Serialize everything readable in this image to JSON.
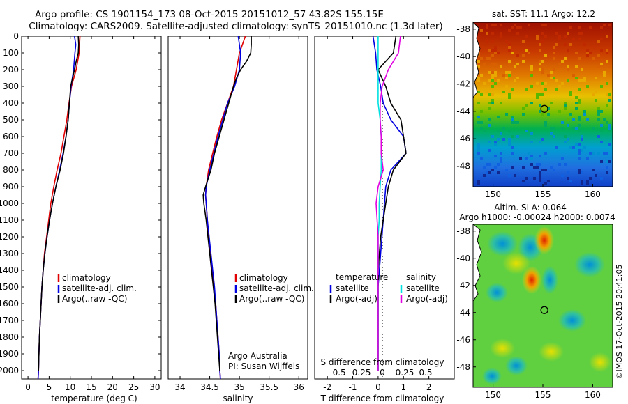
{
  "header": {
    "line1": "Argo profile: CS 1901154_173 08-Oct-2015 20151012_57 43.82S 155.15E",
    "line2": "Climatology: CARS2009. Satellite-adjusted climatology: synTS_20151010.nc (1.3d later)"
  },
  "colors": {
    "climatology": "#e00000",
    "satellite": "#0000e0",
    "argo": "#000000",
    "sal_sat": "#00e0e0",
    "sal_argo": "#e000e0"
  },
  "depth_ticks": [
    "0",
    "100",
    "200",
    "300",
    "400",
    "500",
    "600",
    "700",
    "800",
    "900",
    "1000",
    "1100",
    "1200",
    "1300",
    "1400",
    "1500",
    "1600",
    "1700",
    "1800",
    "1900",
    "2000"
  ],
  "chart_data": [
    {
      "type": "line",
      "xlabel": "temperature (deg C)",
      "ylim": [
        2050,
        0
      ],
      "xlim": [
        -1.5,
        31.5
      ],
      "xticks": [
        "0",
        "5",
        "10",
        "15",
        "20",
        "25",
        "30"
      ],
      "legend": [
        "climatology",
        "satellite-adj. clim.",
        "Argo(..raw -QC)"
      ],
      "series": [
        {
          "name": "climatology",
          "depth": [
            0,
            100,
            200,
            300,
            400,
            500,
            600,
            700,
            800,
            900,
            1000,
            1100,
            1200,
            1300,
            1400,
            1500,
            1600,
            1700,
            1800,
            1900,
            2000,
            2050
          ],
          "values": [
            12.3,
            12.1,
            11.4,
            10.3,
            9.7,
            9.2,
            8.5,
            7.8,
            6.9,
            6.1,
            5.4,
            4.9,
            4.4,
            3.9,
            3.6,
            3.3,
            3.1,
            2.9,
            2.7,
            2.6,
            2.5,
            2.4
          ]
        },
        {
          "name": "satellite-adj. clim.",
          "depth": [
            0,
            50,
            100,
            200,
            300,
            400,
            500,
            600,
            700,
            800,
            900,
            1000,
            1100,
            1200,
            1300,
            1400,
            1500,
            1600,
            1700,
            1800,
            1900,
            2000,
            2050
          ],
          "values": [
            11.0,
            11.3,
            11.1,
            10.8,
            10.2,
            9.8,
            9.5,
            9.0,
            8.3,
            7.5,
            6.6,
            5.8,
            5.1,
            4.5,
            4.0,
            3.6,
            3.3,
            3.1,
            2.9,
            2.7,
            2.6,
            2.5,
            2.4
          ]
        },
        {
          "name": "Argo(..raw -QC)",
          "depth": [
            0,
            50,
            100,
            150,
            200,
            300,
            400,
            500,
            600,
            700,
            800,
            900,
            1000,
            1100,
            1200,
            1300,
            1400,
            1500,
            1600,
            1700,
            1800,
            1900,
            2000
          ],
          "values": [
            11.9,
            12.0,
            11.9,
            11.4,
            11.0,
            10.1,
            9.8,
            9.5,
            9.0,
            8.4,
            7.6,
            6.6,
            5.8,
            5.1,
            4.5,
            4.0,
            3.6,
            3.3,
            3.1,
            2.9,
            2.7,
            2.6,
            2.5
          ]
        }
      ]
    },
    {
      "type": "line",
      "xlabel": "salinity",
      "ylim": [
        2050,
        0
      ],
      "xlim": [
        33.8,
        36.15
      ],
      "xticks": [
        "34",
        "34.5",
        "35",
        "35.5",
        "36"
      ],
      "legend": [
        "climatology",
        "satellite-adj. clim.",
        "Argo(..raw -QC)"
      ],
      "annotations": [
        "Argo Australia",
        "PI: Susan Wijffels"
      ],
      "series": [
        {
          "name": "climatology",
          "depth": [
            0,
            50,
            100,
            200,
            300,
            400,
            500,
            600,
            700,
            800,
            900,
            950,
            1000,
            1100,
            1200,
            1300,
            1400,
            1500,
            1600,
            1700,
            1800,
            1900,
            2000,
            2050
          ],
          "values": [
            35.1,
            35.05,
            35.0,
            34.95,
            34.9,
            34.8,
            34.7,
            34.62,
            34.55,
            34.48,
            34.44,
            34.43,
            34.44,
            34.46,
            34.48,
            34.51,
            34.54,
            34.57,
            34.6,
            34.62,
            34.64,
            34.66,
            34.67,
            34.68
          ]
        },
        {
          "name": "satellite-adj. clim.",
          "depth": [
            0,
            50,
            100,
            200,
            300,
            400,
            500,
            600,
            700,
            800,
            900,
            950,
            1000,
            1100,
            1200,
            1300,
            1400,
            1500,
            1600,
            1700,
            1800,
            1900,
            2000,
            2050
          ],
          "values": [
            34.98,
            35.0,
            35.02,
            35.0,
            34.92,
            34.8,
            34.72,
            34.64,
            34.57,
            34.5,
            34.44,
            34.43,
            34.44,
            34.46,
            34.49,
            34.52,
            34.55,
            34.58,
            34.6,
            34.62,
            34.64,
            34.66,
            34.67,
            34.68
          ]
        },
        {
          "name": "Argo(..raw -QC)",
          "depth": [
            0,
            50,
            100,
            150,
            200,
            250,
            300,
            400,
            500,
            600,
            700,
            800,
            900,
            950,
            1000,
            1100,
            1200,
            1300,
            1400,
            1500,
            1600,
            1700,
            1800,
            1900,
            2000
          ],
          "values": [
            35.2,
            35.2,
            35.19,
            35.12,
            35.02,
            34.95,
            34.9,
            34.82,
            34.74,
            34.66,
            34.58,
            34.52,
            34.43,
            34.39,
            34.4,
            34.44,
            34.47,
            34.5,
            34.53,
            34.56,
            34.59,
            34.61,
            34.63,
            34.65,
            34.67
          ]
        }
      ]
    },
    {
      "type": "line",
      "xlabel": "T difference from climatology",
      "title2": "S difference from climatology",
      "ylim": [
        2050,
        0
      ],
      "xlim": [
        -2.5,
        3.0
      ],
      "xticks": [
        "-2",
        "-1",
        "0",
        "1",
        "2"
      ],
      "xticks_top": [
        "-0.5",
        "-0.25",
        "0",
        "0.25",
        "0.5"
      ],
      "legend": {
        "temperature": [
          "satellite",
          "Argo(-adj)"
        ],
        "salinity": [
          "satellite",
          "Argo(-adj)"
        ],
        "temperature_title": "temperature",
        "salinity_title": "salinity"
      },
      "series": [
        {
          "name": "temperature satellite",
          "depth": [
            0,
            100,
            200,
            300,
            400,
            500,
            600,
            700,
            800,
            900,
            1000,
            1100,
            1200,
            1300,
            1400,
            1500,
            1600,
            1700,
            1800,
            1900,
            2000
          ],
          "values": [
            -0.2,
            -0.1,
            -0.05,
            0.1,
            0.2,
            0.5,
            1.0,
            1.1,
            0.5,
            0.3,
            0.25,
            0.2,
            0.15,
            0.1,
            0.05,
            0.0,
            0.0,
            0.0,
            0.0,
            0.0,
            0.0
          ]
        },
        {
          "name": "temperature Argo(-adj)",
          "depth": [
            0,
            100,
            200,
            300,
            400,
            500,
            600,
            700,
            800,
            900,
            1000,
            1100,
            1200,
            1300,
            1400,
            1500,
            1600,
            1700,
            1800,
            1900,
            2000
          ],
          "values": [
            0.7,
            0.6,
            0.0,
            0.3,
            0.5,
            0.9,
            1.0,
            1.1,
            0.6,
            0.4,
            0.3,
            0.2,
            0.1,
            0.05,
            0.0,
            0.0,
            0.0,
            0.0,
            0.0,
            0.0,
            0.0
          ]
        },
        {
          "name": "salinity satellite",
          "depth": [
            0,
            100,
            200,
            300,
            400,
            500,
            600,
            700,
            800,
            900,
            1000,
            1100,
            1200,
            1300,
            1400,
            1500,
            1600,
            1700,
            1800,
            1900,
            2000
          ],
          "values": [
            0.0,
            0.0,
            0.0,
            0.0,
            0.0,
            0.02,
            0.03,
            0.03,
            0.03,
            0.02,
            0.01,
            0.01,
            0.0,
            0.0,
            0.0,
            0.0,
            0.0,
            0.0,
            0.0,
            0.0,
            0.0
          ]
        },
        {
          "name": "salinity Argo(-adj)",
          "depth": [
            0,
            100,
            200,
            300,
            400,
            500,
            600,
            700,
            800,
            900,
            1000,
            1100,
            1200,
            1300,
            1400,
            1500,
            1600,
            1700,
            1800,
            1900,
            2000
          ],
          "values": [
            0.22,
            0.2,
            0.1,
            0.04,
            0.02,
            0.02,
            0.03,
            0.03,
            0.05,
            0.0,
            -0.02,
            -0.01,
            0.0,
            0.0,
            0.0,
            0.0,
            0.0,
            0.0,
            0.0,
            0.0,
            0.0
          ]
        }
      ]
    },
    {
      "type": "heatmap",
      "title": "sat. SST: 11.1  Argo: 12.2",
      "xlim": [
        148,
        162
      ],
      "ylim": [
        -49.5,
        -37.5
      ],
      "xticks": [
        "150",
        "155",
        "160"
      ],
      "yticks": [
        "-38",
        "-40",
        "-42",
        "-44",
        "-46",
        "-48"
      ],
      "marker": {
        "lon": 155.15,
        "lat": -43.82
      }
    },
    {
      "type": "heatmap",
      "title": "Altim. SLA: 0.064",
      "subtitle": "Argo h1000: -0.00024 h2000: 0.0074",
      "xlim": [
        148,
        162
      ],
      "ylim": [
        -49.5,
        -37.5
      ],
      "xticks": [
        "150",
        "155",
        "160"
      ],
      "yticks": [
        "-38",
        "-40",
        "-42",
        "-44",
        "-46",
        "-48"
      ],
      "marker": {
        "lon": 155.15,
        "lat": -43.82
      }
    }
  ],
  "stamp": "©IMOS 17-Oct-2015 20:41:05"
}
